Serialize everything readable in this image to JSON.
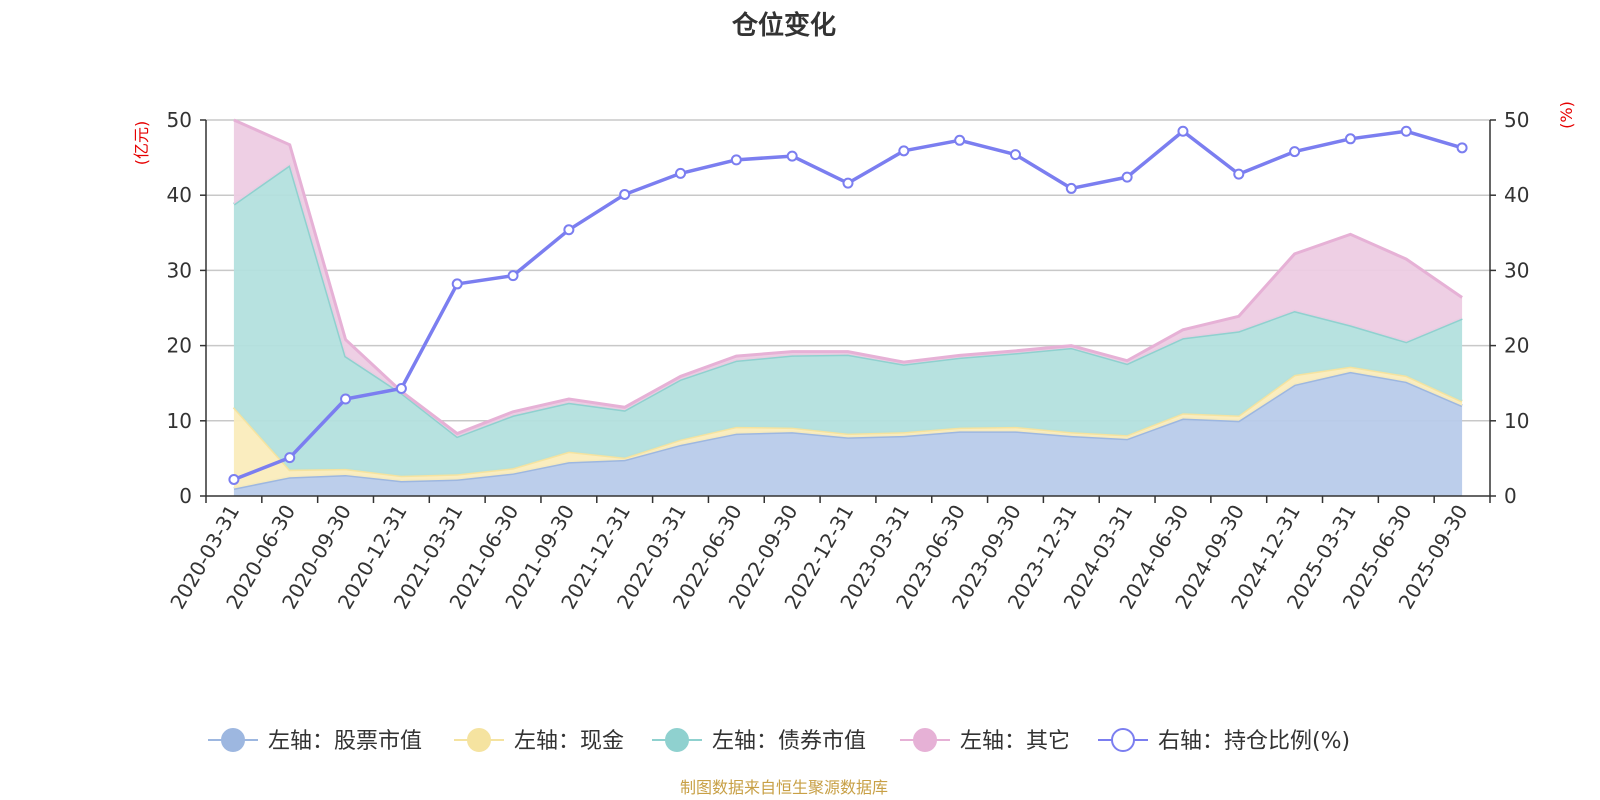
{
  "chart_data": {
    "type": "area",
    "title": "仓位变化",
    "source": "制图数据来自恒生聚源数据库",
    "y_left": {
      "label": "(亿元)",
      "range": [
        0,
        50
      ],
      "ticks": [
        "0",
        "10",
        "20",
        "30",
        "40",
        "50"
      ]
    },
    "y_right": {
      "label": "(%)",
      "range": [
        0,
        50
      ],
      "ticks": [
        "0",
        "10",
        "20",
        "30",
        "40",
        "50"
      ]
    },
    "categories": [
      "2020-03-31",
      "2020-06-30",
      "2020-09-30",
      "2020-12-31",
      "2021-03-31",
      "2021-06-30",
      "2021-09-30",
      "2021-12-31",
      "2022-03-31",
      "2022-06-30",
      "2022-09-30",
      "2022-12-31",
      "2023-03-31",
      "2023-06-30",
      "2023-09-30",
      "2023-12-31",
      "2024-03-31",
      "2024-06-30",
      "2024-09-30",
      "2024-12-31",
      "2025-03-31",
      "2025-06-30",
      "2025-09-30"
    ],
    "stacked_series": [
      {
        "name": "左轴：股票市值",
        "color": "#9db7e0",
        "fill": "#b8cbea",
        "axis": "left",
        "values": [
          1.0,
          2.5,
          2.8,
          2.0,
          2.2,
          3.0,
          4.5,
          4.8,
          6.8,
          8.3,
          8.5,
          7.8,
          8.0,
          8.6,
          8.6,
          8.0,
          7.6,
          10.3,
          10.0,
          14.8,
          16.5,
          15.2,
          12.0
        ]
      },
      {
        "name": "左轴：现金",
        "color": "#f5e3a0",
        "fill": "#faecbc",
        "axis": "left",
        "values": [
          10.8,
          1.0,
          0.8,
          0.7,
          0.7,
          0.7,
          1.4,
          0.3,
          0.7,
          0.9,
          0.6,
          0.5,
          0.5,
          0.5,
          0.6,
          0.5,
          0.5,
          0.7,
          0.7,
          1.3,
          0.7,
          0.8,
          0.6
        ]
      },
      {
        "name": "左轴：债券市值",
        "color": "#8fd1cf",
        "fill": "#b3e0de",
        "axis": "left",
        "values": [
          27.0,
          40.5,
          15.0,
          11.0,
          5.0,
          7.0,
          6.5,
          6.3,
          8.0,
          8.8,
          9.6,
          10.5,
          9.0,
          9.3,
          9.8,
          11.2,
          9.5,
          10.0,
          11.2,
          8.5,
          5.5,
          4.5,
          11.0
        ]
      },
      {
        "name": "左轴：其它",
        "color": "#e6b1d6",
        "fill": "#edcce3",
        "axis": "left",
        "values": [
          11.2,
          2.7,
          2.2,
          0.2,
          0.4,
          0.5,
          0.5,
          0.4,
          0.4,
          0.6,
          0.5,
          0.4,
          0.3,
          0.3,
          0.3,
          0.3,
          0.4,
          1.1,
          2.0,
          7.6,
          12.1,
          11.0,
          2.8
        ]
      }
    ],
    "line_series": {
      "name": "右轴：持仓比例(%)",
      "color": "#7b7ef0",
      "axis": "right",
      "values": [
        2.2,
        5.1,
        12.9,
        14.3,
        28.2,
        29.3,
        35.4,
        40.1,
        42.9,
        44.7,
        45.2,
        41.6,
        45.9,
        47.3,
        45.4,
        40.9,
        42.4,
        48.5,
        42.8,
        45.8,
        47.5,
        48.5,
        46.3
      ]
    },
    "legend": [
      "左轴：股票市值",
      "左轴：现金",
      "左轴：债券市值",
      "左轴：其它",
      "右轴：持仓比例(%)"
    ],
    "legend_position": "bottom",
    "grid": true
  }
}
